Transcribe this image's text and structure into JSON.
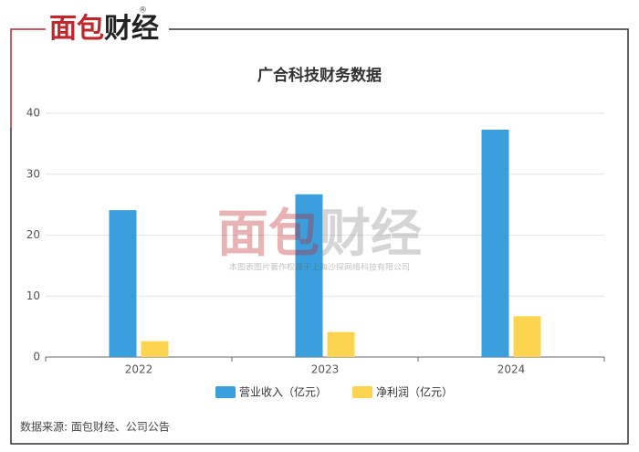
{
  "logo": [
    "面包",
    "财经"
  ],
  "registered": "®",
  "watermark": [
    "面包",
    "财经"
  ],
  "watermark_note": "本图表图片著作权属于上海沙探网络科技有限公司",
  "source": "数据来源: 面包财经、公司公告",
  "chart_data": {
    "type": "bar",
    "title": "广合科技财务数据",
    "categories": [
      "2022",
      "2023",
      "2024"
    ],
    "series": [
      {
        "name": "营业收入（亿元）",
        "color": "#3a9fdc",
        "values": [
          24.1,
          26.7,
          37.3
        ]
      },
      {
        "name": "净利润（亿元）",
        "color": "#fdd44f",
        "values": [
          2.6,
          4.1,
          6.7
        ]
      }
    ],
    "ylim": [
      0,
      40
    ],
    "yticks": [
      0,
      10,
      20,
      30,
      40
    ],
    "grid": true,
    "legend": "bottom"
  }
}
